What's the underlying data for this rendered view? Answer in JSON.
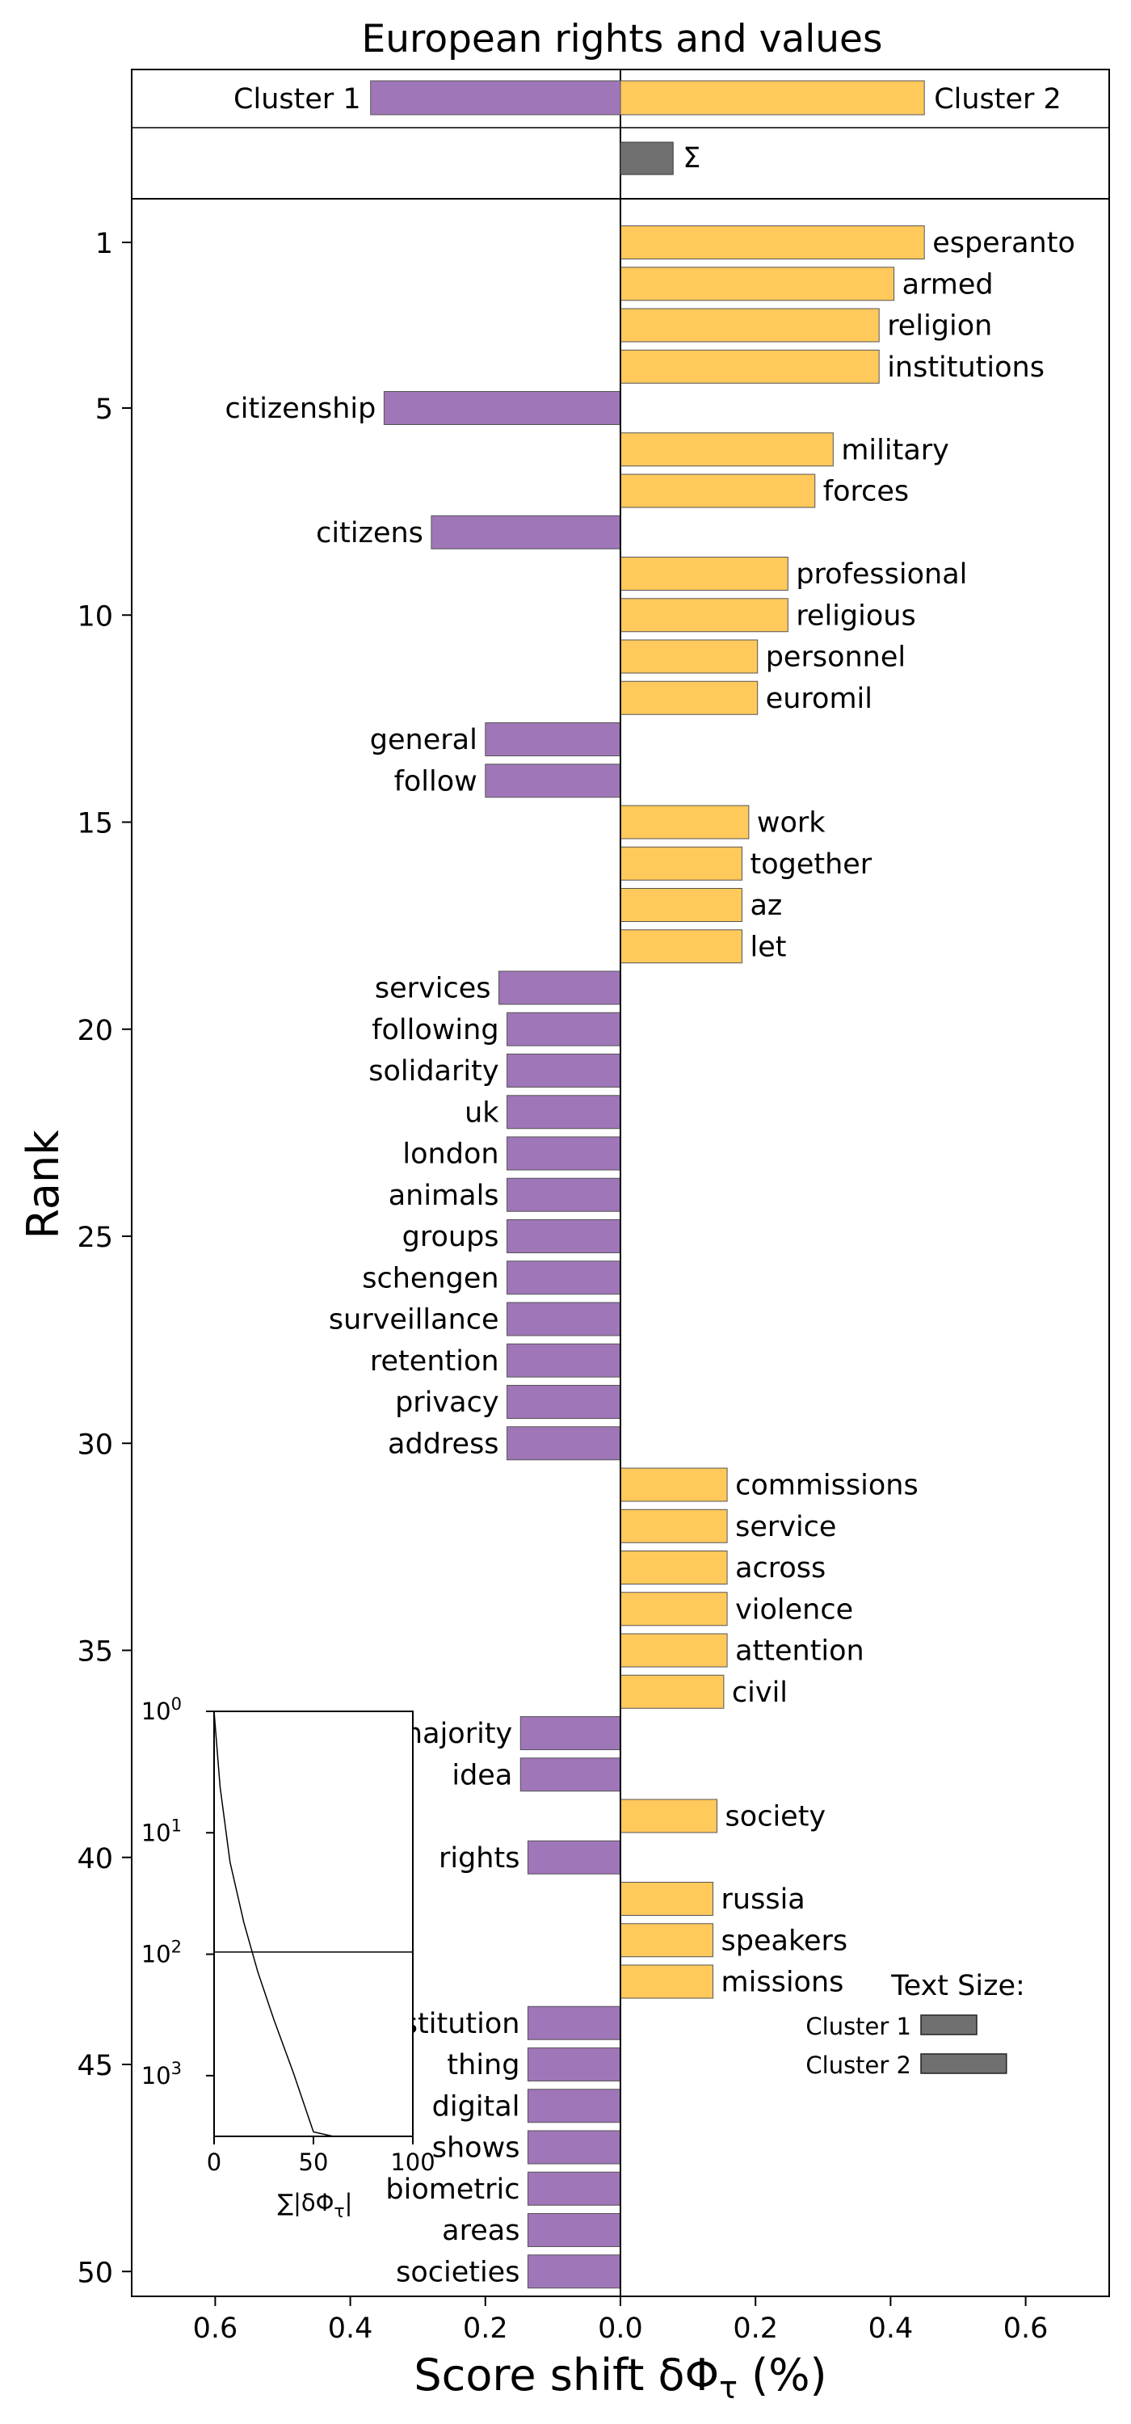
{
  "chart_data": {
    "type": "bar",
    "title": "European rights and values",
    "xlabel": "Score shift δΦ_τ (%)",
    "ylabel": "Rank",
    "xlim": [
      -0.72,
      0.72
    ],
    "ylim": [
      0.5,
      50.5
    ],
    "x_ticks": [
      "0.6",
      "0.4",
      "0.2",
      "0.0",
      "0.2",
      "0.4",
      "0.6"
    ],
    "y_ticks": [
      "1",
      "5",
      "10",
      "15",
      "20",
      "25",
      "30",
      "35",
      "40",
      "45",
      "50"
    ],
    "series": [
      {
        "name": "Cluster 1",
        "color": "#9f76b8"
      },
      {
        "name": "Cluster 2",
        "color": "#ffc95c"
      }
    ],
    "summary": {
      "cluster1_total": -0.37,
      "cluster2_total": 0.45,
      "sum_label": "Σ",
      "sum_value": 0.078
    },
    "words": [
      {
        "rank": 1,
        "word": "esperanto",
        "value": 0.45
      },
      {
        "rank": 2,
        "word": "armed",
        "value": 0.405
      },
      {
        "rank": 3,
        "word": "religion",
        "value": 0.383
      },
      {
        "rank": 4,
        "word": "institutions",
        "value": 0.383
      },
      {
        "rank": 5,
        "word": "citizenship",
        "value": -0.35
      },
      {
        "rank": 6,
        "word": "military",
        "value": 0.315
      },
      {
        "rank": 7,
        "word": "forces",
        "value": 0.288
      },
      {
        "rank": 8,
        "word": "citizens",
        "value": -0.28
      },
      {
        "rank": 9,
        "word": "professional",
        "value": 0.248
      },
      {
        "rank": 10,
        "word": "religious",
        "value": 0.248
      },
      {
        "rank": 11,
        "word": "personnel",
        "value": 0.203
      },
      {
        "rank": 12,
        "word": "euromil",
        "value": 0.203
      },
      {
        "rank": 13,
        "word": "general",
        "value": -0.2
      },
      {
        "rank": 14,
        "word": "follow",
        "value": -0.2
      },
      {
        "rank": 15,
        "word": "work",
        "value": 0.19
      },
      {
        "rank": 16,
        "word": "together",
        "value": 0.18
      },
      {
        "rank": 17,
        "word": "az",
        "value": 0.18
      },
      {
        "rank": 18,
        "word": "let",
        "value": 0.18
      },
      {
        "rank": 19,
        "word": "services",
        "value": -0.18
      },
      {
        "rank": 20,
        "word": "following",
        "value": -0.168
      },
      {
        "rank": 21,
        "word": "solidarity",
        "value": -0.168
      },
      {
        "rank": 22,
        "word": "uk",
        "value": -0.168
      },
      {
        "rank": 23,
        "word": "london",
        "value": -0.168
      },
      {
        "rank": 24,
        "word": "animals",
        "value": -0.168
      },
      {
        "rank": 25,
        "word": "groups",
        "value": -0.168
      },
      {
        "rank": 26,
        "word": "schengen",
        "value": -0.168
      },
      {
        "rank": 27,
        "word": "surveillance",
        "value": -0.168
      },
      {
        "rank": 28,
        "word": "retention",
        "value": -0.168
      },
      {
        "rank": 29,
        "word": "privacy",
        "value": -0.168
      },
      {
        "rank": 30,
        "word": "address",
        "value": -0.168
      },
      {
        "rank": 31,
        "word": "commissions",
        "value": 0.158
      },
      {
        "rank": 32,
        "word": "service",
        "value": 0.158
      },
      {
        "rank": 33,
        "word": "across",
        "value": 0.158
      },
      {
        "rank": 34,
        "word": "violence",
        "value": 0.158
      },
      {
        "rank": 35,
        "word": "attention",
        "value": 0.158
      },
      {
        "rank": 36,
        "word": "civil",
        "value": 0.153
      },
      {
        "rank": 37,
        "word": "majority",
        "value": -0.148
      },
      {
        "rank": 38,
        "word": "idea",
        "value": -0.148
      },
      {
        "rank": 39,
        "word": "society",
        "value": 0.143
      },
      {
        "rank": 40,
        "word": "rights",
        "value": -0.137
      },
      {
        "rank": 41,
        "word": "russia",
        "value": 0.137
      },
      {
        "rank": 42,
        "word": "speakers",
        "value": 0.137
      },
      {
        "rank": 43,
        "word": "missions",
        "value": 0.137
      },
      {
        "rank": 44,
        "word": "constitution",
        "value": -0.137
      },
      {
        "rank": 45,
        "word": "thing",
        "value": -0.137
      },
      {
        "rank": 46,
        "word": "digital",
        "value": -0.137
      },
      {
        "rank": 47,
        "word": "shows",
        "value": -0.137
      },
      {
        "rank": 48,
        "word": "biometric",
        "value": -0.137
      },
      {
        "rank": 49,
        "word": "areas",
        "value": -0.137
      },
      {
        "rank": 50,
        "word": "societies",
        "value": -0.137
      }
    ],
    "inset": {
      "xlabel": "∑|δΦ_τ|",
      "x_ticks": [
        "0",
        "50",
        "100"
      ],
      "y_ticks_base": "10",
      "y_ticks_exp": [
        "0",
        "1",
        "2",
        "3"
      ],
      "hline_rank": 50,
      "curve": [
        [
          0,
          1
        ],
        [
          3,
          2
        ],
        [
          8,
          4
        ],
        [
          15,
          7
        ],
        [
          22,
          11
        ],
        [
          30,
          17
        ],
        [
          40,
          28
        ],
        [
          50,
          48
        ],
        [
          60,
          85
        ],
        [
          70,
          150
        ],
        [
          80,
          280
        ],
        [
          90,
          520
        ],
        [
          100,
          1000
        ]
      ]
    },
    "legend": {
      "title": "Text Size:",
      "items": [
        {
          "label": "Cluster 1",
          "value": 0.3
        },
        {
          "label": "Cluster 2",
          "value": 0.46
        }
      ]
    }
  }
}
